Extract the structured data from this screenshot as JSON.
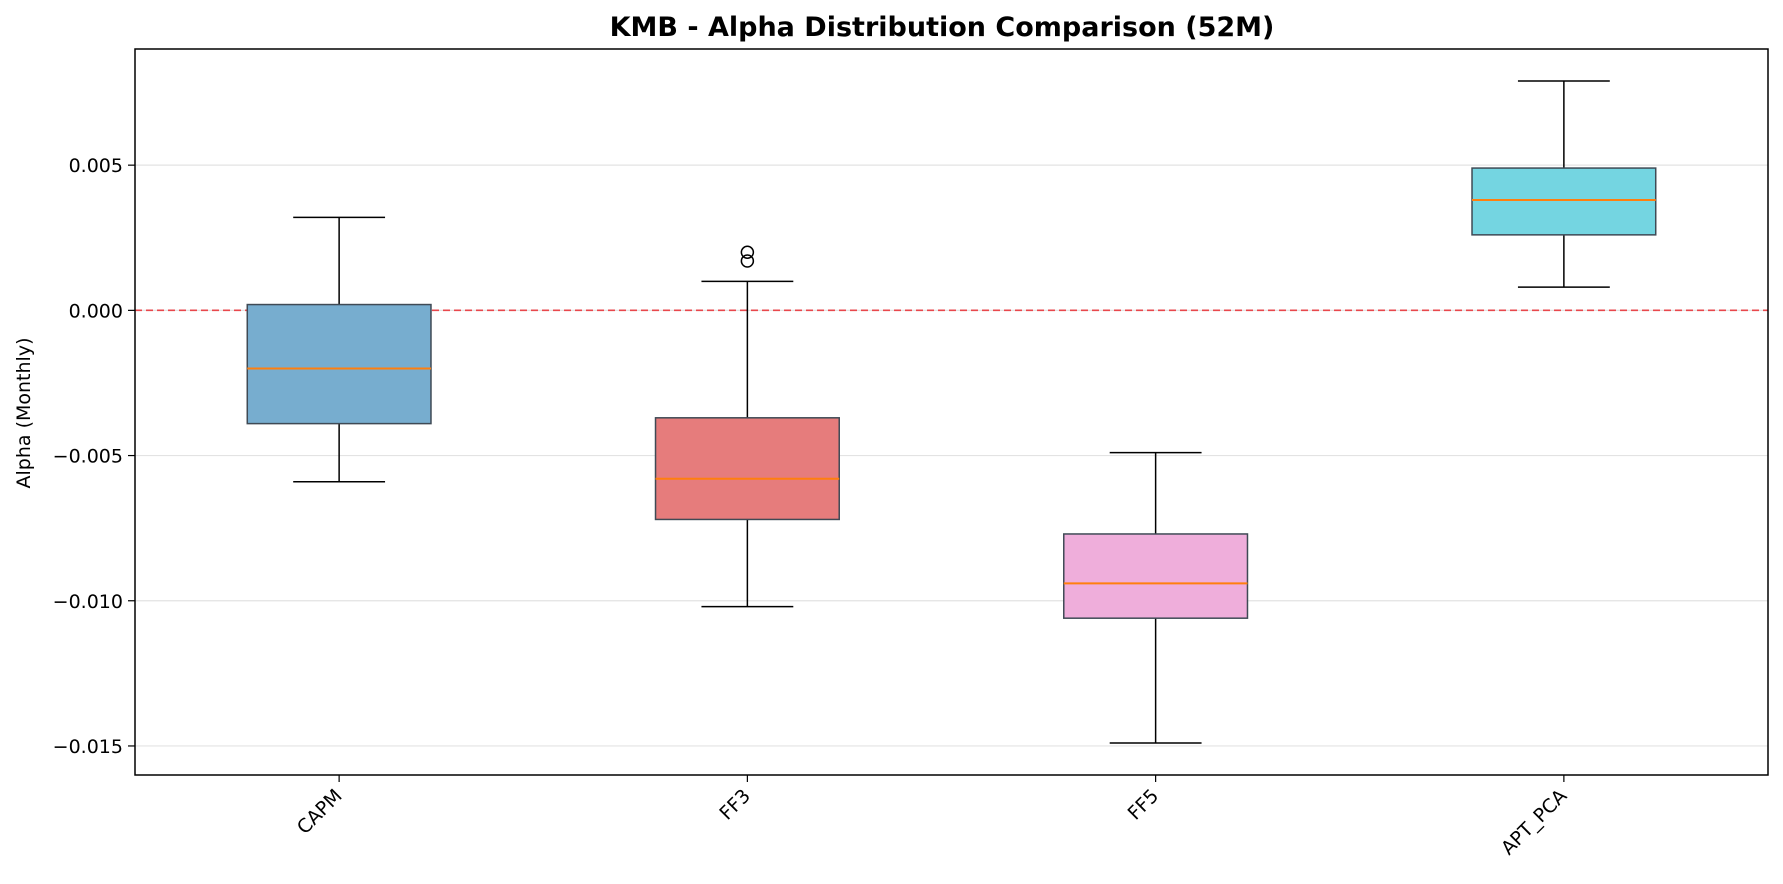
{
  "chart_data": {
    "type": "boxplot",
    "title": "KMB - Alpha Distribution Comparison (52M)",
    "xlabel": "",
    "ylabel": "Alpha (Monthly)",
    "ylim": [
      -0.016,
      0.009
    ],
    "yticks": [
      0.005,
      0.0,
      -0.005,
      -0.01,
      -0.015
    ],
    "ytick_labels": [
      "0.005",
      "0.000",
      "−0.005",
      "−0.010",
      "−0.015"
    ],
    "grid": "horizontal",
    "reference_line": {
      "y": 0.0,
      "style": "dashed",
      "color": "#e8474c"
    },
    "median_color": "#ff7f0e",
    "categories": [
      "CAPM",
      "FF3",
      "FF5",
      "APT_PCA"
    ],
    "boxes": [
      {
        "name": "CAPM",
        "whisker_low": -0.0059,
        "q1": -0.0039,
        "median": -0.002,
        "q3": 0.0002,
        "whisker_high": 0.0032,
        "outliers": [],
        "color": "#77adcf"
      },
      {
        "name": "FF3",
        "whisker_low": -0.0102,
        "q1": -0.0072,
        "median": -0.0058,
        "q3": -0.0037,
        "whisker_high": 0.001,
        "outliers": [
          0.0017,
          0.002
        ],
        "color": "#e67c7c"
      },
      {
        "name": "FF5",
        "whisker_low": -0.0149,
        "q1": -0.0106,
        "median": -0.0094,
        "q3": -0.0077,
        "whisker_high": -0.0049,
        "outliers": [],
        "color": "#efaedb"
      },
      {
        "name": "APT_PCA",
        "whisker_low": 0.0008,
        "q1": 0.0026,
        "median": 0.0038,
        "q3": 0.0049,
        "whisker_high": 0.0079,
        "outliers": [],
        "color": "#74d5e1"
      }
    ]
  }
}
